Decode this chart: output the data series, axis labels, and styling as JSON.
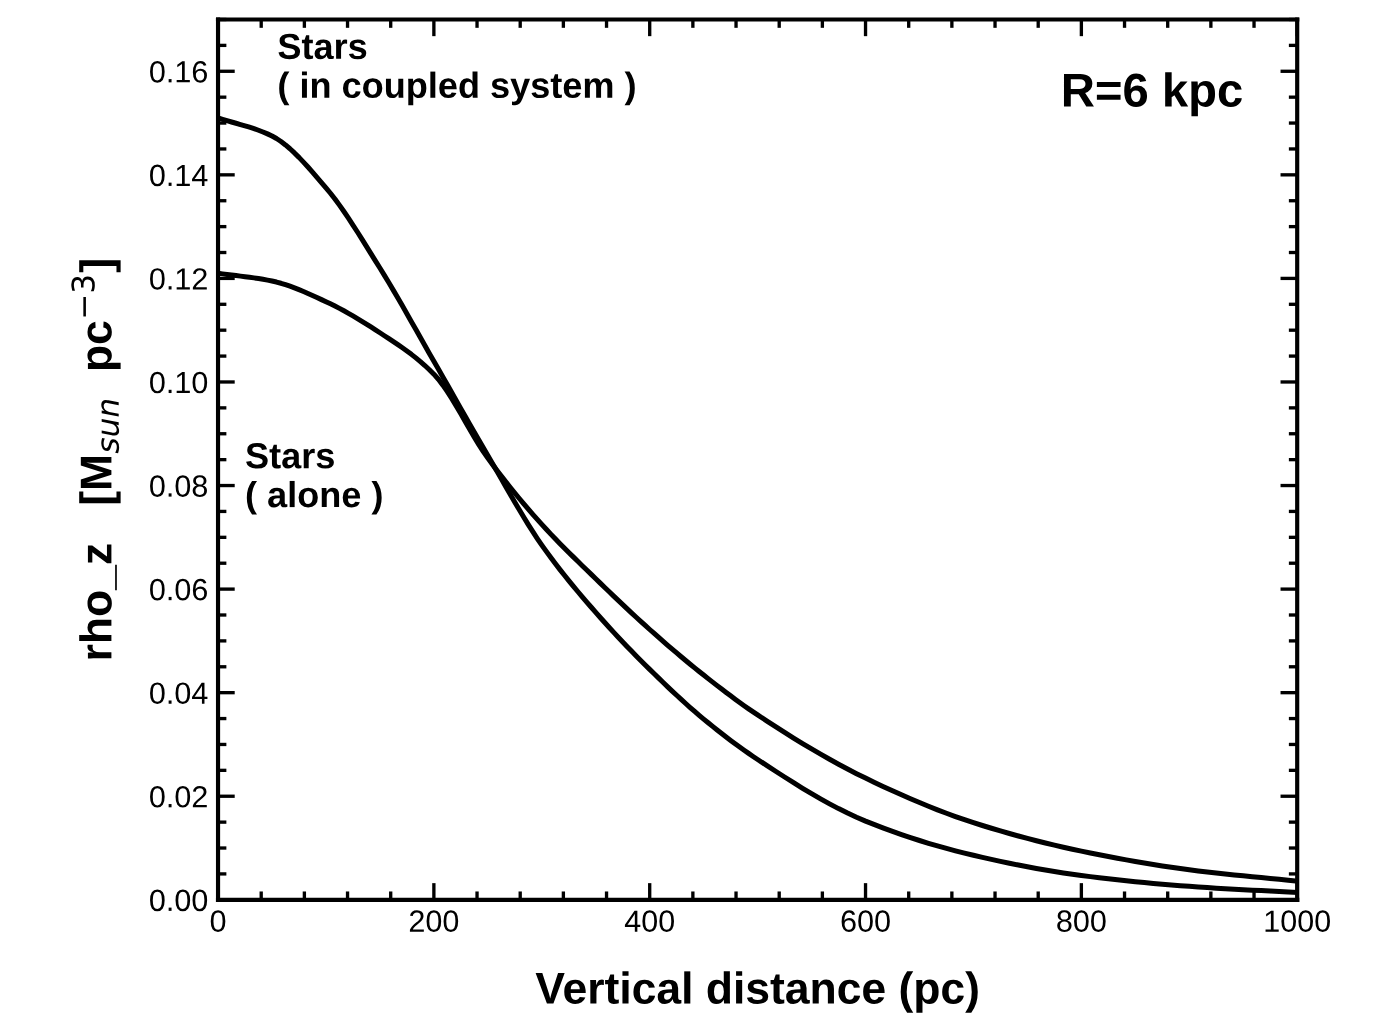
{
  "chart_data": {
    "type": "line",
    "xlabel": "Vertical distance (pc)",
    "ylabel": "rho_z   [M$_{sun}$  pc$^{−3}$]",
    "x": [
      0,
      50,
      100,
      150,
      200,
      250,
      300,
      350,
      400,
      450,
      500,
      600,
      700,
      800,
      900,
      1000
    ],
    "series": [
      {
        "color": "#000000",
        "values": [
          0.151,
          0.1475,
          0.1375,
          0.122,
          0.104,
          0.0858,
          0.0685,
          0.0555,
          0.0445,
          0.0349,
          0.0271,
          0.0152,
          0.0086,
          0.0047,
          0.0026,
          0.0014
        ]
      },
      {
        "color": "#000000",
        "values": [
          0.121,
          0.1195,
          0.1155,
          0.1095,
          0.1015,
          0.0853,
          0.0725,
          0.062,
          0.0522,
          0.0434,
          0.0357,
          0.0235,
          0.0149,
          0.0094,
          0.0058,
          0.0036
        ]
      }
    ],
    "annotations": [
      "Stars\n( in coupled system )",
      "Stars\n( alone )",
      "R=6 kpc"
    ],
    "xlim": [
      0,
      1000
    ],
    "ylim": [
      0,
      0.17
    ],
    "xticks": [
      0,
      200,
      400,
      600,
      800,
      1000
    ],
    "yticks": [
      {
        "value": 0,
        "label": "0.00"
      },
      {
        "value": 0.02,
        "label": "0.02"
      },
      {
        "value": 0.04,
        "label": "0.04"
      },
      {
        "value": 0.06,
        "label": "0.06"
      },
      {
        "value": 0.08,
        "label": "0.08"
      },
      {
        "value": 0.1,
        "label": "0.10"
      },
      {
        "value": 0.12,
        "label": "0.12"
      },
      {
        "value": 0.14,
        "label": "0.14"
      },
      {
        "value": 0.16,
        "label": "0.16"
      }
    ],
    "grid": false,
    "legend": false,
    "marker": "none",
    "line_style": "solid"
  }
}
